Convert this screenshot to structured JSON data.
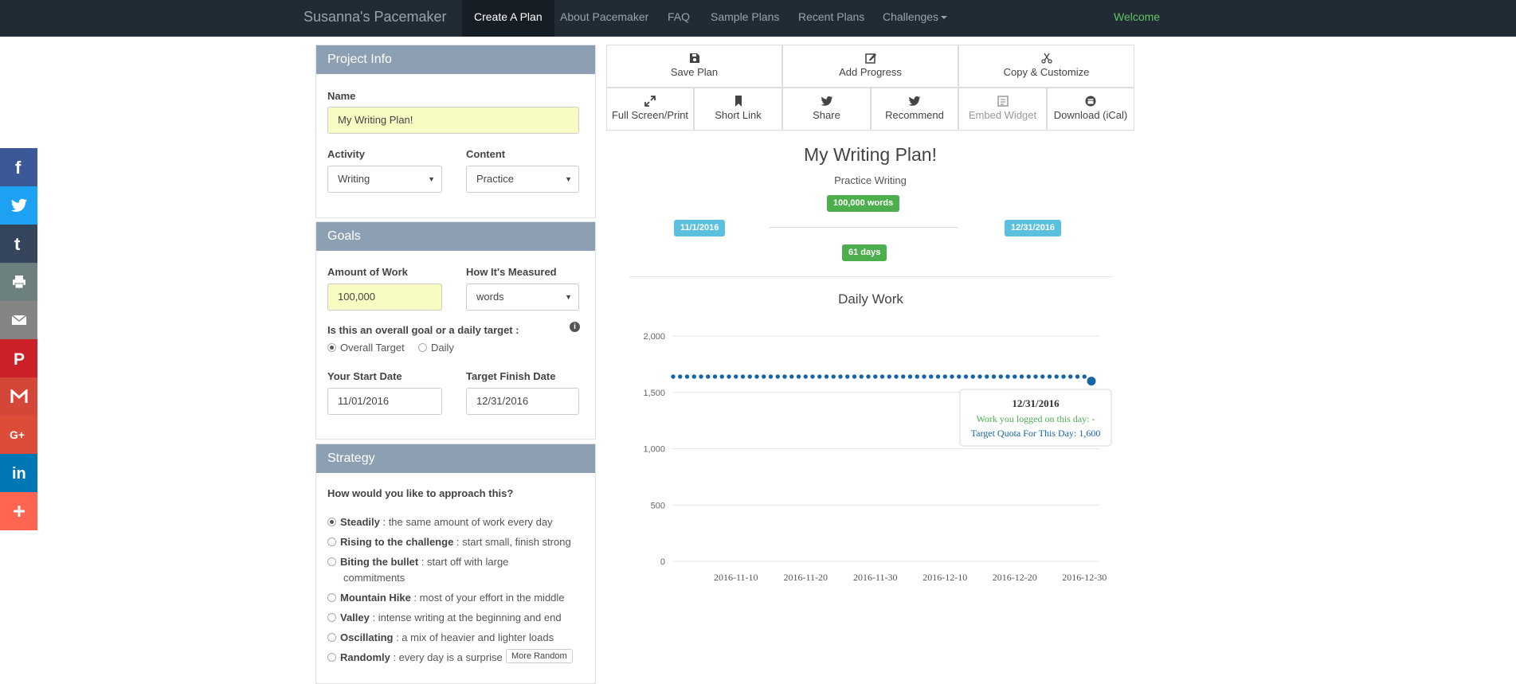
{
  "navbar": {
    "brand": "Susanna's Pacemaker",
    "links": [
      "Create A Plan",
      "About Pacemaker",
      "FAQ",
      "Sample Plans",
      "Recent Plans",
      "Challenges"
    ],
    "welcome": "Welcome"
  },
  "social": [
    "f",
    "t",
    "t",
    "print",
    "mail",
    "P",
    "M",
    "G+",
    "in",
    "+"
  ],
  "project_info": {
    "title": "Project Info",
    "name_label": "Name",
    "name_value": "My Writing Plan!",
    "activity_label": "Activity",
    "activity_value": "Writing",
    "content_label": "Content",
    "content_value": "Practice"
  },
  "goals": {
    "title": "Goals",
    "amount_label": "Amount of Work",
    "amount_value": "100,000",
    "measured_label": "How It's Measured",
    "measured_value": "words",
    "type_question": "Is this an overall goal or a daily target :",
    "type_options": [
      "Overall Target",
      "Daily"
    ],
    "start_label": "Your Start Date",
    "start_value": "11/01/2016",
    "finish_label": "Target Finish Date",
    "finish_value": "12/31/2016"
  },
  "strategy": {
    "title": "Strategy",
    "question": "How would you like to approach this?",
    "options": [
      {
        "name": "Steadily",
        "desc": " : the same amount of work every day"
      },
      {
        "name": "Rising to the challenge",
        "desc": " : start small, finish strong"
      },
      {
        "name": "Biting the bullet",
        "desc": " : start off with large"
      },
      {
        "name": "Mountain Hike",
        "desc": " : most of your effort in the middle"
      },
      {
        "name": "Valley",
        "desc": " : intense writing at the beginning and end"
      },
      {
        "name": "Oscillating",
        "desc": " : a mix of heavier and lighter loads"
      },
      {
        "name": "Randomly",
        "desc": " : every day is a surprise"
      }
    ],
    "biting_cont": "commitments",
    "more_random": "More Random"
  },
  "toolbar": {
    "save": "Save Plan",
    "add_progress": "Add Progress",
    "copy": "Copy & Customize",
    "fullscreen": "Full Screen/Print",
    "short_link": "Short Link",
    "share": "Share",
    "recommend": "Recommend",
    "embed": "Embed Widget",
    "download": "Download (iCal)"
  },
  "plan": {
    "title": "My Writing Plan!",
    "subtitle": "Practice Writing",
    "words_badge": "100,000 words",
    "start_badge": "11/1/2016",
    "end_badge": "12/31/2016",
    "days_badge": "61 days"
  },
  "tooltip": {
    "date": "12/31/2016",
    "logged": "Work you logged on this day: -",
    "quota": "Target Quota For This Day: 1,600"
  },
  "colors": {
    "series": "#1565a8",
    "navbar": "#212b35",
    "panel_header": "#8da0b3",
    "social": [
      "#3b5998",
      "#1da1f2",
      "#35465c",
      "#6d8080",
      "#848484",
      "#cb2027",
      "#d44638",
      "#dd4b39",
      "#0077b5",
      "#ff6550"
    ]
  },
  "chart_data": {
    "type": "line",
    "title": "Daily Work",
    "xlabel": "",
    "ylabel": "",
    "x_ticks": [
      "2016-11-10",
      "2016-11-20",
      "2016-11-30",
      "2016-12-10",
      "2016-12-20",
      "2016-12-30"
    ],
    "y_ticks": [
      "0",
      "500",
      "1,000",
      "1,500",
      "2,000"
    ],
    "ylim": [
      0,
      2000
    ],
    "x_range": [
      "2016-11-01",
      "2016-12-31"
    ],
    "grid": true,
    "series": [
      {
        "x": [
          "2016-11-01",
          "2016-11-02",
          "2016-11-03",
          "2016-11-04",
          "2016-11-05",
          "2016-11-06",
          "2016-11-07",
          "2016-11-08",
          "2016-11-09",
          "2016-11-10",
          "2016-11-11",
          "2016-11-12",
          "2016-11-13",
          "2016-11-14",
          "2016-11-15",
          "2016-11-16",
          "2016-11-17",
          "2016-11-18",
          "2016-11-19",
          "2016-11-20",
          "2016-11-21",
          "2016-11-22",
          "2016-11-23",
          "2016-11-24",
          "2016-11-25",
          "2016-11-26",
          "2016-11-27",
          "2016-11-28",
          "2016-11-29",
          "2016-11-30",
          "2016-12-01",
          "2016-12-02",
          "2016-12-03",
          "2016-12-04",
          "2016-12-05",
          "2016-12-06",
          "2016-12-07",
          "2016-12-08",
          "2016-12-09",
          "2016-12-10",
          "2016-12-11",
          "2016-12-12",
          "2016-12-13",
          "2016-12-14",
          "2016-12-15",
          "2016-12-16",
          "2016-12-17",
          "2016-12-18",
          "2016-12-19",
          "2016-12-20",
          "2016-12-21",
          "2016-12-22",
          "2016-12-23",
          "2016-12-24",
          "2016-12-25",
          "2016-12-26",
          "2016-12-27",
          "2016-12-28",
          "2016-12-29",
          "2016-12-30",
          "2016-12-31"
        ],
        "values": [
          1640,
          1640,
          1640,
          1640,
          1640,
          1640,
          1640,
          1640,
          1640,
          1640,
          1640,
          1640,
          1640,
          1640,
          1640,
          1640,
          1640,
          1640,
          1640,
          1640,
          1640,
          1640,
          1640,
          1640,
          1640,
          1640,
          1640,
          1640,
          1640,
          1640,
          1640,
          1640,
          1640,
          1640,
          1640,
          1640,
          1640,
          1640,
          1640,
          1640,
          1640,
          1640,
          1640,
          1640,
          1640,
          1640,
          1640,
          1640,
          1640,
          1640,
          1640,
          1640,
          1640,
          1640,
          1640,
          1640,
          1640,
          1640,
          1640,
          1640,
          1600
        ]
      }
    ],
    "highlighted_point": "2016-12-31"
  }
}
